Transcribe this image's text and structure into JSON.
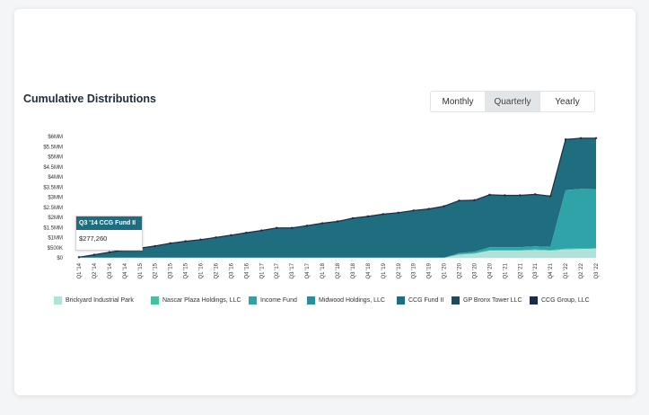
{
  "title": "Cumulative Distributions",
  "toggle": {
    "options": [
      "Monthly",
      "Quarterly",
      "Yearly"
    ],
    "active": "Quarterly"
  },
  "tooltip": {
    "label": "Q3 '14 CCG Fund II",
    "value": "$277,260"
  },
  "chart_data": {
    "type": "area",
    "stacked": true,
    "categories": [
      "Q1 '14",
      "Q2 '14",
      "Q3 '14",
      "Q4 '14",
      "Q1 '15",
      "Q2 '15",
      "Q3 '15",
      "Q4 '15",
      "Q1 '16",
      "Q2 '16",
      "Q3 '16",
      "Q4 '16",
      "Q1 '17",
      "Q2 '17",
      "Q3 '17",
      "Q4 '17",
      "Q1 '18",
      "Q2 '18",
      "Q3 '18",
      "Q4 '18",
      "Q1 '19",
      "Q2 '19",
      "Q3 '19",
      "Q4 '19",
      "Q1 '20",
      "Q2 '20",
      "Q3 '20",
      "Q4 '20",
      "Q1 '21",
      "Q2 '21",
      "Q3 '21",
      "Q4 '21",
      "Q1 '22",
      "Q2 '22",
      "Q3 '22"
    ],
    "y_ticks": [
      "$0",
      "$500K",
      "$1MM",
      "$1.5MM",
      "$2MM",
      "$2.5MM",
      "$3MM",
      "$3.5MM",
      "$4MM",
      "$4.5MM",
      "$5MM",
      "$5.5MM",
      "$6MM"
    ],
    "ylim": [
      0,
      6000000
    ],
    "legend_position": "bottom",
    "series": [
      {
        "name": "Brickyard Industrial Park",
        "color": "#b3e0d9",
        "values": [
          0,
          0,
          0,
          0,
          0,
          0,
          0,
          0,
          0,
          0,
          0,
          0,
          0,
          0,
          0,
          0,
          0,
          0,
          0,
          0,
          0,
          0,
          0,
          0,
          0,
          150000,
          200000,
          350000,
          350000,
          350000,
          380000,
          350000,
          420000,
          430000,
          450000
        ]
      },
      {
        "name": "Nascar Plaza Holdings, LLC",
        "color": "#46bfa3",
        "values": [
          0,
          0,
          0,
          0,
          0,
          0,
          0,
          0,
          0,
          0,
          0,
          0,
          0,
          0,
          0,
          0,
          0,
          0,
          0,
          0,
          0,
          0,
          0,
          0,
          0,
          30000,
          30000,
          30000,
          30000,
          30000,
          30000,
          30000,
          30000,
          30000,
          30000
        ]
      },
      {
        "name": "Income Fund",
        "color": "#2ea3a8",
        "values": [
          0,
          0,
          0,
          0,
          0,
          0,
          0,
          0,
          0,
          0,
          0,
          0,
          0,
          0,
          0,
          0,
          0,
          0,
          0,
          0,
          0,
          0,
          0,
          0,
          0,
          50000,
          70000,
          140000,
          150000,
          150000,
          160000,
          160000,
          2900000,
          2950000,
          2920000
        ]
      },
      {
        "name": "Midwood Holdings, LLC",
        "color": "#2b8f9b",
        "values": [
          0,
          0,
          0,
          0,
          0,
          0,
          0,
          0,
          0,
          0,
          0,
          0,
          0,
          0,
          0,
          0,
          0,
          0,
          0,
          0,
          0,
          0,
          0,
          0,
          0,
          0,
          0,
          0,
          0,
          0,
          0,
          0,
          0,
          0,
          0
        ]
      },
      {
        "name": "CCG Fund II",
        "color": "#1e6e80",
        "values": [
          30000,
          150000,
          277260,
          400000,
          480000,
          580000,
          720000,
          820000,
          900000,
          1010000,
          1120000,
          1240000,
          1350000,
          1480000,
          1480000,
          1590000,
          1710000,
          1800000,
          1960000,
          2050000,
          2160000,
          2230000,
          2340000,
          2420000,
          2550000,
          2600000,
          2550000,
          2600000,
          2560000,
          2560000,
          2570000,
          2510000,
          2510000,
          2510000,
          2520000
        ]
      },
      {
        "name": "GP Bronx Tower LLC",
        "color": "#1e4a5e",
        "values": [
          0,
          0,
          0,
          0,
          0,
          0,
          0,
          0,
          0,
          0,
          0,
          0,
          0,
          0,
          0,
          0,
          0,
          0,
          0,
          0,
          0,
          0,
          0,
          0,
          0,
          0,
          0,
          0,
          0,
          0,
          0,
          0,
          0,
          0,
          0
        ]
      },
      {
        "name": "CCG Group, LLC",
        "color": "#1b2b48",
        "values": [
          0,
          0,
          0,
          0,
          0,
          0,
          0,
          0,
          0,
          0,
          0,
          0,
          0,
          0,
          0,
          0,
          0,
          0,
          0,
          0,
          0,
          0,
          0,
          0,
          0,
          0,
          0,
          0,
          0,
          0,
          0,
          0,
          0,
          0,
          0
        ]
      }
    ]
  }
}
